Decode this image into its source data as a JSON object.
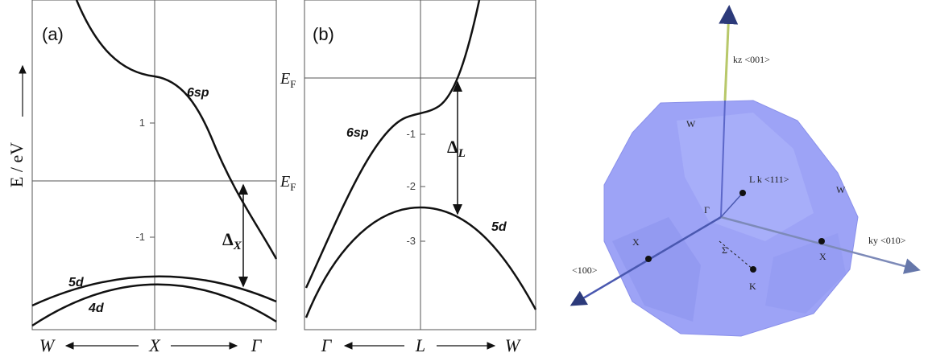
{
  "panel_a": {
    "label": "(a)",
    "y_axis_label": "E / eV",
    "ticks": [
      "1",
      "-1"
    ],
    "fermi": {
      "symbol": "E",
      "subscript": "F"
    },
    "bands": [
      "6sp",
      "5d",
      "4d"
    ],
    "gap": {
      "symbol": "Δ",
      "subscript": "X"
    },
    "x_labels": [
      "W",
      "X",
      "Γ"
    ]
  },
  "panel_b": {
    "label": "(b)",
    "ticks": [
      "-1",
      "-2",
      "-3"
    ],
    "fermi": {
      "symbol": "E",
      "subscript": "F"
    },
    "bands": [
      "6sp",
      "5d"
    ],
    "gap": {
      "symbol": "Δ",
      "subscript": "L"
    },
    "x_labels": [
      "Γ",
      "L",
      "W"
    ]
  },
  "brillouin_zone": {
    "labels": [
      "kz <001>",
      "W",
      "L k <111>",
      "W",
      "Γ",
      "X",
      "Σ",
      "X",
      "K",
      "ky <010>",
      "<100>"
    ]
  }
}
